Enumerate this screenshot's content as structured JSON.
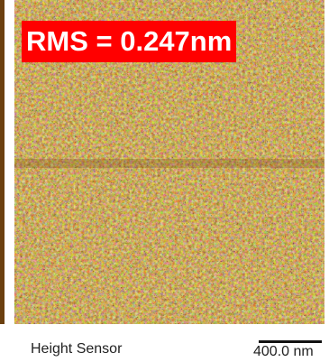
{
  "overlay": {
    "rms_text": "RMS = 0.247nm",
    "badge_color": "#ff0000"
  },
  "caption": {
    "channel_label": "Height Sensor",
    "scale_label": "400.0 nm"
  },
  "palette": {
    "dark": "#5a3208",
    "mid": "#8a5a1c",
    "light": "#c89a4a",
    "highlight": "#f2dc9a"
  }
}
